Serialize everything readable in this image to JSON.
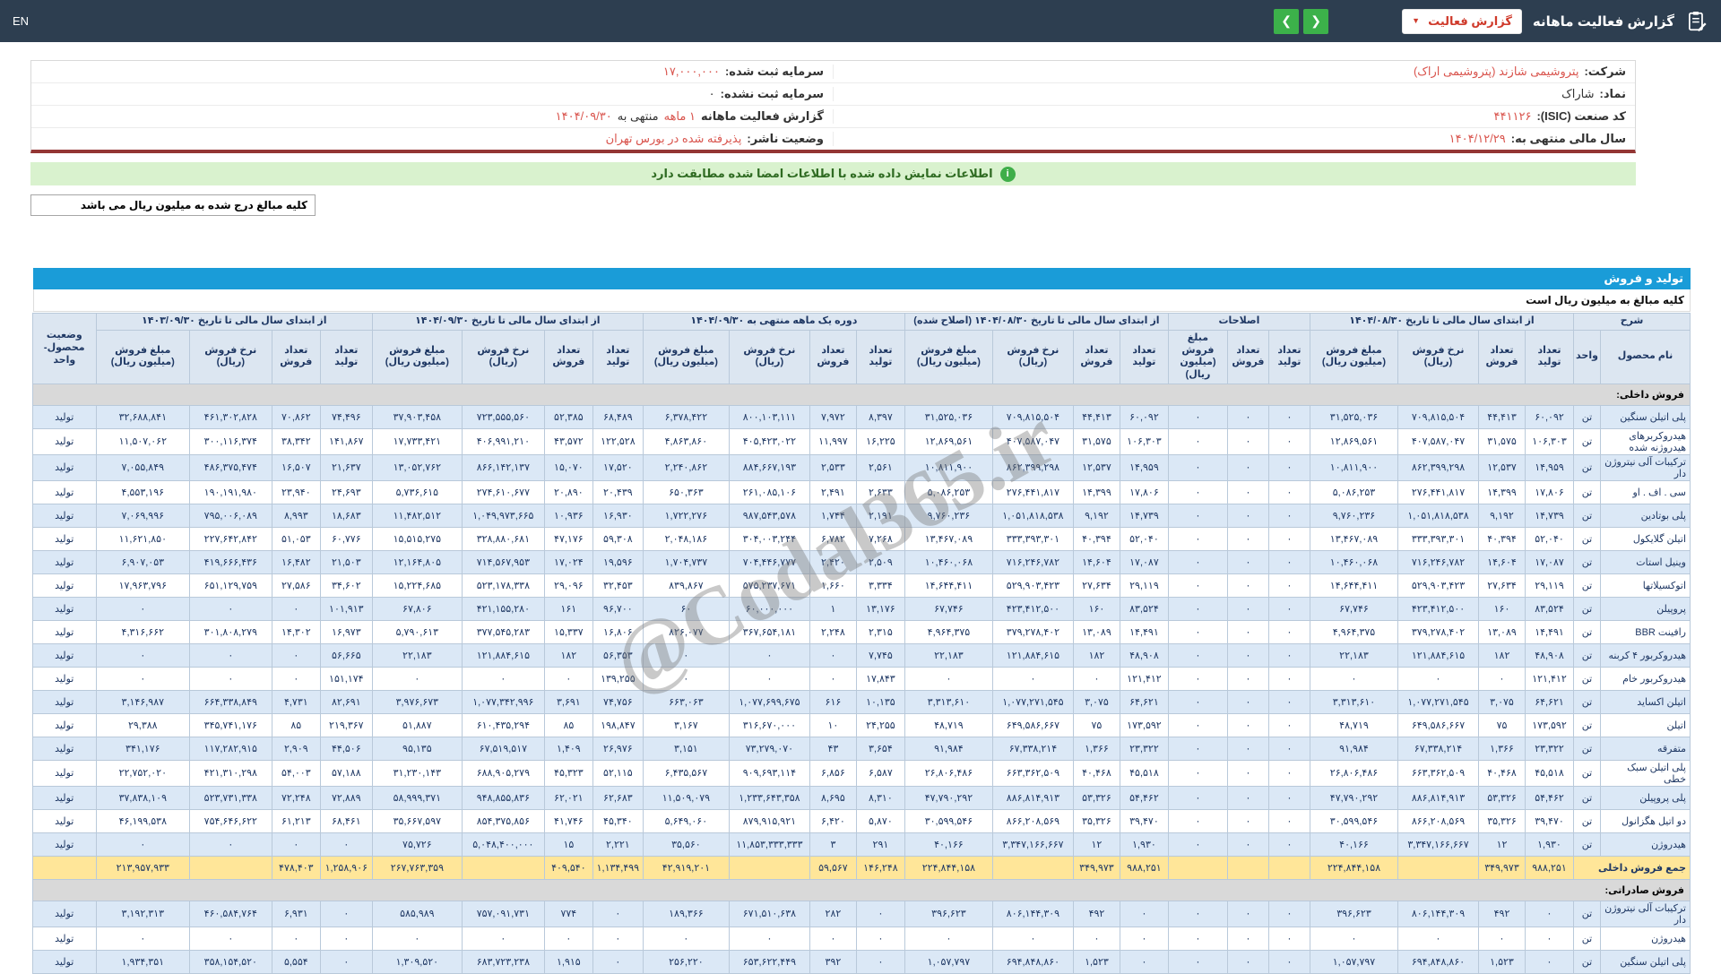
{
  "topbar": {
    "en": "EN",
    "title": "گزارش فعالیت ماهانه",
    "select_label": "گزارش فعالیت",
    "prev_arrow": "❮",
    "next_arrow": "❯"
  },
  "colors": {
    "topbar_bg": "#2d3e50",
    "accent_blue": "#1a9cd8",
    "banner_green": "#d9f2ce",
    "highlight_red": "#d9544d",
    "total_yellow": "#ffe699",
    "nav_green": "#3cb14a"
  },
  "company_info": {
    "rows": [
      {
        "r_label": "شرکت:",
        "r_value": "پتروشیمی شازند (پتروشیمی اراک)",
        "l_label": "سرمایه ثبت شده:",
        "l_value": "۱۷,۰۰۰,۰۰۰"
      },
      {
        "r_label": "نماد:",
        "r_value": "شاراک",
        "l_label": "سرمایه ثبت نشده:",
        "l_value": "۰"
      },
      {
        "r_label": "کد صنعت (ISIC):",
        "r_value": "۴۴۱۱۲۶",
        "l_label": "گزارش فعالیت ماهانه",
        "l_hl1": "۱ ماهه",
        "l_mid": "منتهی به",
        "l_value": "۱۴۰۴/۰۹/۳۰"
      },
      {
        "r_label": "سال مالی منتهی به:",
        "r_value": "۱۴۰۴/۱۲/۲۹",
        "l_label": "وضعیت ناشر:",
        "l_value": "پذیرفته شده در بورس تهران"
      }
    ]
  },
  "banner": {
    "icon": "i",
    "text": "اطلاعات نمایش داده شده با اطلاعات امضا شده مطابقت دارد"
  },
  "note_box": "کلیه مبالغ درج شده به میلیون ریال می باشد",
  "section_bar": "تولید و فروش",
  "amounts_note": "کلیه مبالغ به میلیون ریال است",
  "watermark": "@Codal365.ir",
  "table": {
    "sharh": "شرح",
    "name_col": "نام محصول",
    "unit_col": "واحد",
    "status_col": "وضعیت محصول-واحد",
    "col_labels": {
      "prod": "تعداد تولید",
      "sold": "تعداد فروش",
      "rate": "نرخ فروش (ریال)",
      "amount": "مبلغ فروش (میلیون ریال)"
    },
    "groups": {
      "g1": "از ابتدای سال مالی تا تاریخ ۱۴۰۴/۰۸/۳۰",
      "g2": "اصلاحات",
      "g3": "از ابتدای سال مالی تا تاریخ ۱۴۰۴/۰۸/۳۰ (اصلاح شده)",
      "g4": "دوره یک ماهه منتهی به ۱۴۰۴/۰۹/۳۰",
      "g5": "از ابتدای سال مالی تا تاریخ ۱۴۰۴/۰۹/۳۰",
      "g6": "از ابتدای سال مالی تا تاریخ ۱۴۰۳/۰۹/۳۰"
    },
    "rows": [
      {
        "type": "section",
        "label": "فروش داخلی:"
      },
      {
        "type": "data",
        "name": "پلی اتیلن سنگین",
        "unit": "تن",
        "status": "تولید",
        "cells": [
          "۶۰,۰۹۲",
          "۴۴,۴۱۳",
          "۷۰۹,۸۱۵,۵۰۴",
          "۳۱,۵۲۵,۰۳۶",
          "۰",
          "۰",
          "۰",
          "۶۰,۰۹۲",
          "۴۴,۴۱۳",
          "۷۰۹,۸۱۵,۵۰۴",
          "۳۱,۵۲۵,۰۳۶",
          "۸,۳۹۷",
          "۷,۹۷۲",
          "۸۰۰,۱۰۳,۱۱۱",
          "۶,۳۷۸,۴۲۲",
          "۶۸,۴۸۹",
          "۵۲,۳۸۵",
          "۷۲۳,۵۵۵,۵۶۰",
          "۳۷,۹۰۳,۴۵۸",
          "۷۴,۴۹۶",
          "۷۰,۸۶۲",
          "۴۶۱,۳۰۲,۸۲۸",
          "۳۲,۶۸۸,۸۴۱"
        ]
      },
      {
        "type": "data",
        "name": "هیدروکربرهای هیدروژنه شده",
        "unit": "تن",
        "status": "تولید",
        "cells": [
          "۱۰۶,۳۰۳",
          "۳۱,۵۷۵",
          "۴۰۷,۵۸۷,۰۴۷",
          "۱۲,۸۶۹,۵۶۱",
          "۰",
          "۰",
          "۰",
          "۱۰۶,۳۰۳",
          "۳۱,۵۷۵",
          "۴۰۷,۵۸۷,۰۴۷",
          "۱۲,۸۶۹,۵۶۱",
          "۱۶,۲۲۵",
          "۱۱,۹۹۷",
          "۴۰۵,۴۲۳,۰۲۲",
          "۴,۸۶۳,۸۶۰",
          "۱۲۲,۵۲۸",
          "۴۳,۵۷۲",
          "۴۰۶,۹۹۱,۲۱۰",
          "۱۷,۷۳۳,۴۲۱",
          "۱۴۱,۸۶۷",
          "۳۸,۳۴۲",
          "۳۰۰,۱۱۶,۳۷۴",
          "۱۱,۵۰۷,۰۶۲"
        ]
      },
      {
        "type": "data",
        "name": "ترکیبات آلی نیتروژن دار",
        "unit": "تن",
        "status": "تولید",
        "cells": [
          "۱۴,۹۵۹",
          "۱۲,۵۳۷",
          "۸۶۲,۳۹۹,۲۹۸",
          "۱۰,۸۱۱,۹۰۰",
          "۰",
          "۰",
          "۰",
          "۱۴,۹۵۹",
          "۱۲,۵۳۷",
          "۸۶۲,۳۹۹,۲۹۸",
          "۱۰,۸۱۱,۹۰۰",
          "۲,۵۶۱",
          "۲,۵۳۳",
          "۸۸۴,۶۶۷,۱۹۳",
          "۲,۲۴۰,۸۶۲",
          "۱۷,۵۲۰",
          "۱۵,۰۷۰",
          "۸۶۶,۱۴۲,۱۳۷",
          "۱۳,۰۵۲,۷۶۲",
          "۲۱,۶۳۷",
          "۱۶,۵۰۷",
          "۴۸۶,۳۷۵,۴۷۴",
          "۷,۰۵۵,۸۴۹"
        ]
      },
      {
        "type": "data",
        "name": "سی . اف . او",
        "unit": "تن",
        "status": "تولید",
        "cells": [
          "۱۷,۸۰۶",
          "۱۴,۳۹۹",
          "۲۷۶,۴۴۱,۸۱۷",
          "۵,۰۸۶,۲۵۳",
          "۰",
          "۰",
          "۰",
          "۱۷,۸۰۶",
          "۱۴,۳۹۹",
          "۲۷۶,۴۴۱,۸۱۷",
          "۵,۰۸۶,۲۵۳",
          "۲,۶۳۳",
          "۲,۴۹۱",
          "۲۶۱,۰۸۵,۱۰۶",
          "۶۵۰,۳۶۳",
          "۲۰,۴۳۹",
          "۲۰,۸۹۰",
          "۲۷۴,۶۱۰,۶۷۷",
          "۵,۷۳۶,۶۱۵",
          "۲۴,۶۹۳",
          "۲۳,۹۴۰",
          "۱۹۰,۱۹۱,۹۸۰",
          "۴,۵۵۳,۱۹۶"
        ]
      },
      {
        "type": "data",
        "name": "پلی بوتادین",
        "unit": "تن",
        "status": "تولید",
        "cells": [
          "۱۴,۷۳۹",
          "۹,۱۹۲",
          "۱,۰۵۱,۸۱۸,۵۳۸",
          "۹,۷۶۰,۲۳۶",
          "۰",
          "۰",
          "۰",
          "۱۴,۷۳۹",
          "۹,۱۹۲",
          "۱,۰۵۱,۸۱۸,۵۳۸",
          "۹,۷۶۰,۲۳۶",
          "۲,۱۹۱",
          "۱,۷۴۴",
          "۹۸۷,۵۴۳,۵۷۸",
          "۱,۷۲۲,۲۷۶",
          "۱۶,۹۳۰",
          "۱۰,۹۳۶",
          "۱,۰۴۹,۹۷۳,۶۶۵",
          "۱۱,۴۸۲,۵۱۲",
          "۱۸,۶۸۳",
          "۸,۹۹۳",
          "۷۹۵,۰۰۶,۰۸۹",
          "۷,۰۶۹,۹۹۶"
        ]
      },
      {
        "type": "data",
        "name": "اتیلن گلایکول",
        "unit": "تن",
        "status": "تولید",
        "cells": [
          "۵۲,۰۴۰",
          "۴۰,۳۹۴",
          "۳۳۳,۳۹۳,۳۰۱",
          "۱۳,۴۶۷,۰۸۹",
          "۰",
          "۰",
          "۰",
          "۵۲,۰۴۰",
          "۴۰,۳۹۴",
          "۳۳۳,۳۹۳,۳۰۱",
          "۱۳,۴۶۷,۰۸۹",
          "۷,۲۶۸",
          "۶,۷۸۲",
          "۳۰۴,۰۰۳,۲۴۴",
          "۲,۰۴۸,۱۸۶",
          "۵۹,۳۰۸",
          "۴۷,۱۷۶",
          "۳۲۸,۸۸۰,۶۸۱",
          "۱۵,۵۱۵,۲۷۵",
          "۶۰,۷۷۶",
          "۵۱,۰۵۳",
          "۲۲۷,۶۴۲,۸۴۲",
          "۱۱,۶۲۱,۸۵۰"
        ]
      },
      {
        "type": "data",
        "name": "وینیل استات",
        "unit": "تن",
        "status": "تولید",
        "cells": [
          "۱۷,۰۸۷",
          "۱۴,۶۰۴",
          "۷۱۶,۲۴۶,۷۸۲",
          "۱۰,۴۶۰,۰۶۸",
          "۰",
          "۰",
          "۰",
          "۱۷,۰۸۷",
          "۱۴,۶۰۴",
          "۷۱۶,۲۴۶,۷۸۲",
          "۱۰,۴۶۰,۰۶۸",
          "۲,۵۰۹",
          "۲,۴۲۰",
          "۷۰۴,۴۴۶,۷۷۷",
          "۱,۷۰۴,۷۳۷",
          "۱۹,۵۹۶",
          "۱۷,۰۲۴",
          "۷۱۴,۵۶۷,۹۵۳",
          "۱۲,۱۶۴,۸۰۵",
          "۲۱,۵۰۳",
          "۱۶,۴۸۲",
          "۴۱۹,۶۶۶,۴۳۶",
          "۶,۹۰۷,۰۵۳"
        ]
      },
      {
        "type": "data",
        "name": "اتوکسیلاتها",
        "unit": "تن",
        "status": "تولید",
        "cells": [
          "۲۹,۱۱۹",
          "۲۷,۶۳۴",
          "۵۲۹,۹۰۳,۴۲۳",
          "۱۴,۶۴۴,۴۱۱",
          "۰",
          "۰",
          "۰",
          "۲۹,۱۱۹",
          "۲۷,۶۳۴",
          "۵۲۹,۹۰۳,۴۲۳",
          "۱۴,۶۴۴,۴۱۱",
          "۳,۳۳۴",
          "۱,۶۶۰",
          "۵۷۵,۲۳۷,۶۷۱",
          "۸۳۹,۸۶۷",
          "۳۲,۴۵۳",
          "۲۹,۰۹۶",
          "۵۲۳,۱۷۸,۳۳۸",
          "۱۵,۲۲۴,۶۸۵",
          "۳۴,۶۰۲",
          "۲۷,۵۸۶",
          "۶۵۱,۱۲۹,۷۵۹",
          "۱۷,۹۶۳,۷۹۶"
        ]
      },
      {
        "type": "data",
        "name": "پروپیلن",
        "unit": "تن",
        "status": "تولید",
        "cells": [
          "۸۳,۵۲۴",
          "۱۶۰",
          "۴۲۳,۴۱۲,۵۰۰",
          "۶۷,۷۴۶",
          "۰",
          "۰",
          "۰",
          "۸۳,۵۲۴",
          "۱۶۰",
          "۴۲۳,۴۱۲,۵۰۰",
          "۶۷,۷۴۶",
          "۱۳,۱۷۶",
          "۱",
          "۶۰,۰۰۰,۰۰۰",
          "۶۰",
          "۹۶,۷۰۰",
          "۱۶۱",
          "۴۲۱,۱۵۵,۲۸۰",
          "۶۷,۸۰۶",
          "۱۰۱,۹۱۳",
          "۰",
          "۰",
          "۰"
        ]
      },
      {
        "type": "data",
        "name": "رافینت BBR",
        "unit": "تن",
        "status": "تولید",
        "cells": [
          "۱۴,۴۹۱",
          "۱۳,۰۸۹",
          "۳۷۹,۲۷۸,۴۰۲",
          "۴,۹۶۴,۳۷۵",
          "۰",
          "۰",
          "۰",
          "۱۴,۴۹۱",
          "۱۳,۰۸۹",
          "۳۷۹,۲۷۸,۴۰۲",
          "۴,۹۶۴,۳۷۵",
          "۲,۳۱۵",
          "۲,۲۴۸",
          "۳۶۷,۶۵۴,۱۸۱",
          "۸۲۶,۰۷۷",
          "۱۶,۸۰۶",
          "۱۵,۳۳۷",
          "۳۷۷,۵۴۵,۲۸۳",
          "۵,۷۹۰,۶۱۳",
          "۱۶,۹۷۳",
          "۱۴,۳۰۲",
          "۳۰۱,۸۰۸,۲۷۹",
          "۴,۳۱۶,۶۶۲"
        ]
      },
      {
        "type": "data",
        "name": "هیدروکربور ۴ کربنه",
        "unit": "تن",
        "status": "تولید",
        "cells": [
          "۴۸,۹۰۸",
          "۱۸۲",
          "۱۲۱,۸۸۴,۶۱۵",
          "۲۲,۱۸۳",
          "۰",
          "۰",
          "۰",
          "۴۸,۹۰۸",
          "۱۸۲",
          "۱۲۱,۸۸۴,۶۱۵",
          "۲۲,۱۸۳",
          "۷,۷۴۵",
          "۰",
          "۰",
          "۰",
          "۵۶,۳۵۳",
          "۱۸۲",
          "۱۲۱,۸۸۴,۶۱۵",
          "۲۲,۱۸۳",
          "۵۶,۶۶۵",
          "۰",
          "۰",
          "۰"
        ]
      },
      {
        "type": "data",
        "name": "هیدروکربور خام",
        "unit": "تن",
        "status": "تولید",
        "cells": [
          "۱۲۱,۴۱۲",
          "۰",
          "۰",
          "۰",
          "۰",
          "۰",
          "۰",
          "۱۲۱,۴۱۲",
          "۰",
          "۰",
          "۰",
          "۱۷,۸۴۳",
          "۰",
          "۰",
          "۰",
          "۱۳۹,۲۵۵",
          "۰",
          "۰",
          "۰",
          "۱۵۱,۱۷۴",
          "۰",
          "۰",
          "۰"
        ]
      },
      {
        "type": "data",
        "name": "اتیلن اکساید",
        "unit": "تن",
        "status": "تولید",
        "cells": [
          "۶۴,۶۲۱",
          "۳,۰۷۵",
          "۱,۰۷۷,۲۷۱,۵۴۵",
          "۳,۳۱۳,۶۱۰",
          "۰",
          "۰",
          "۰",
          "۶۴,۶۲۱",
          "۳,۰۷۵",
          "۱,۰۷۷,۲۷۱,۵۴۵",
          "۳,۳۱۳,۶۱۰",
          "۱۰,۱۳۵",
          "۶۱۶",
          "۱,۰۷۷,۶۹۹,۶۷۵",
          "۶۶۳,۰۶۳",
          "۷۴,۷۵۶",
          "۳,۶۹۱",
          "۱,۰۷۷,۳۴۲,۹۹۶",
          "۳,۹۷۶,۶۷۳",
          "۸۲,۶۹۱",
          "۴,۷۳۱",
          "۶۶۴,۳۳۸,۸۴۹",
          "۳,۱۴۶,۹۸۷"
        ]
      },
      {
        "type": "data",
        "name": "اتیلن",
        "unit": "تن",
        "status": "تولید",
        "cells": [
          "۱۷۳,۵۹۲",
          "۷۵",
          "۶۴۹,۵۸۶,۶۶۷",
          "۴۸,۷۱۹",
          "۰",
          "۰",
          "۰",
          "۱۷۳,۵۹۲",
          "۷۵",
          "۶۴۹,۵۸۶,۶۶۷",
          "۴۸,۷۱۹",
          "۲۴,۲۵۵",
          "۱۰",
          "۳۱۶,۶۷۰,۰۰۰",
          "۳,۱۶۷",
          "۱۹۸,۸۴۷",
          "۸۵",
          "۶۱۰,۴۳۵,۲۹۴",
          "۵۱,۸۸۷",
          "۲۱۹,۳۶۷",
          "۸۵",
          "۳۴۵,۷۴۱,۱۷۶",
          "۲۹,۳۸۸"
        ]
      },
      {
        "type": "data",
        "name": "متفرقه",
        "unit": "تن",
        "status": "تولید",
        "cells": [
          "۲۳,۳۲۲",
          "۱,۳۶۶",
          "۶۷,۳۳۸,۲۱۴",
          "۹۱,۹۸۴",
          "۰",
          "۰",
          "۰",
          "۲۳,۳۲۲",
          "۱,۳۶۶",
          "۶۷,۳۳۸,۲۱۴",
          "۹۱,۹۸۴",
          "۳,۶۵۴",
          "۴۳",
          "۷۳,۲۷۹,۰۷۰",
          "۳,۱۵۱",
          "۲۶,۹۷۶",
          "۱,۴۰۹",
          "۶۷,۵۱۹,۵۱۷",
          "۹۵,۱۳۵",
          "۴۴,۵۰۶",
          "۲,۹۰۹",
          "۱۱۷,۲۸۲,۹۱۵",
          "۳۴۱,۱۷۶"
        ]
      },
      {
        "type": "data",
        "name": "پلی اتیلن سبک خطی",
        "unit": "تن",
        "status": "تولید",
        "cells": [
          "۴۵,۵۱۸",
          "۴۰,۴۶۸",
          "۶۶۳,۳۶۲,۵۰۹",
          "۲۶,۸۰۶,۴۸۶",
          "۰",
          "۰",
          "۰",
          "۴۵,۵۱۸",
          "۴۰,۴۶۸",
          "۶۶۳,۳۶۲,۵۰۹",
          "۲۶,۸۰۶,۴۸۶",
          "۶,۵۸۷",
          "۶,۸۵۶",
          "۹۰۹,۶۹۳,۱۱۴",
          "۶,۴۳۵,۵۶۷",
          "۵۲,۱۱۵",
          "۴۵,۳۲۳",
          "۶۸۸,۹۰۵,۲۷۹",
          "۳۱,۲۳۰,۱۴۳",
          "۵۷,۱۸۸",
          "۵۴,۰۰۳",
          "۴۲۱,۳۱۰,۲۹۸",
          "۲۲,۷۵۲,۰۲۰"
        ]
      },
      {
        "type": "data",
        "name": "پلی پروپیلن",
        "unit": "تن",
        "status": "تولید",
        "cells": [
          "۵۴,۴۶۲",
          "۵۳,۳۲۶",
          "۸۸۶,۸۱۴,۹۱۳",
          "۴۷,۷۹۰,۲۹۲",
          "۰",
          "۰",
          "۰",
          "۵۴,۴۶۲",
          "۵۳,۳۲۶",
          "۸۸۶,۸۱۴,۹۱۳",
          "۴۷,۷۹۰,۲۹۲",
          "۸,۳۱۰",
          "۸,۶۹۵",
          "۱,۲۳۳,۶۴۳,۳۵۸",
          "۱۱,۵۰۹,۰۷۹",
          "۶۲,۶۸۳",
          "۶۲,۰۲۱",
          "۹۴۸,۸۵۵,۸۳۶",
          "۵۸,۹۹۹,۳۷۱",
          "۷۲,۸۸۹",
          "۷۲,۲۴۸",
          "۵۲۳,۷۳۱,۳۳۸",
          "۳۷,۸۳۸,۱۰۹"
        ]
      },
      {
        "type": "data",
        "name": "دو اتیل هگزانول",
        "unit": "تن",
        "status": "تولید",
        "cells": [
          "۳۹,۴۷۰",
          "۳۵,۳۲۶",
          "۸۶۶,۲۰۸,۵۶۹",
          "۳۰,۵۹۹,۵۴۶",
          "۰",
          "۰",
          "۰",
          "۳۹,۴۷۰",
          "۳۵,۳۲۶",
          "۸۶۶,۲۰۸,۵۶۹",
          "۳۰,۵۹۹,۵۴۶",
          "۵,۸۷۰",
          "۶,۴۲۰",
          "۸۷۹,۹۱۵,۹۲۱",
          "۵,۶۴۹,۰۶۰",
          "۴۵,۳۴۰",
          "۴۱,۷۴۶",
          "۸۵۴,۳۷۵,۸۵۶",
          "۳۵,۶۶۷,۵۹۷",
          "۶۸,۴۶۱",
          "۶۱,۲۱۳",
          "۷۵۴,۶۴۶,۶۲۲",
          "۴۶,۱۹۹,۵۳۸"
        ]
      },
      {
        "type": "data",
        "name": "هیدروژن",
        "unit": "تن",
        "status": "تولید",
        "cells": [
          "۱,۹۳۰",
          "۱۲",
          "۳,۳۴۷,۱۶۶,۶۶۷",
          "۴۰,۱۶۶",
          "۰",
          "۰",
          "۰",
          "۱,۹۳۰",
          "۱۲",
          "۳,۳۴۷,۱۶۶,۶۶۷",
          "۴۰,۱۶۶",
          "۲۹۱",
          "۳",
          "۱۱,۸۵۳,۳۳۳,۳۳۳",
          "۳۵,۵۶۰",
          "۲,۲۲۱",
          "۱۵",
          "۵,۰۴۸,۴۰۰,۰۰۰",
          "۷۵,۷۲۶",
          "۰",
          "۰",
          "۰",
          "۰"
        ]
      },
      {
        "type": "total",
        "label": "جمع فروش داخلی",
        "cells": [
          "۹۸۸,۲۵۱",
          "۳۴۹,۹۷۳",
          "",
          "۲۲۴,۸۴۴,۱۵۸",
          "",
          "",
          "",
          "۹۸۸,۲۵۱",
          "۳۴۹,۹۷۳",
          "",
          "۲۲۴,۸۴۴,۱۵۸",
          "۱۴۶,۲۴۸",
          "۵۹,۵۶۷",
          "",
          "۴۲,۹۱۹,۲۰۱",
          "۱,۱۳۴,۴۹۹",
          "۴۰۹,۵۴۰",
          "",
          "۲۶۷,۷۶۳,۳۵۹",
          "۱,۲۵۸,۹۰۶",
          "۴۷۸,۴۰۳",
          "",
          "۲۱۳,۹۵۷,۹۳۳"
        ]
      },
      {
        "type": "section",
        "label": "فروش صادراتی:"
      },
      {
        "type": "data",
        "name": "ترکیبات آلی نیتروژن دار",
        "unit": "تن",
        "status": "تولید",
        "cells": [
          "۰",
          "۴۹۲",
          "۸۰۶,۱۴۴,۳۰۹",
          "۳۹۶,۶۲۳",
          "۰",
          "۰",
          "۰",
          "۰",
          "۴۹۲",
          "۸۰۶,۱۴۴,۳۰۹",
          "۳۹۶,۶۲۳",
          "۰",
          "۲۸۲",
          "۶۷۱,۵۱۰,۶۳۸",
          "۱۸۹,۳۶۶",
          "۰",
          "۷۷۴",
          "۷۵۷,۰۹۱,۷۳۱",
          "۵۸۵,۹۸۹",
          "۰",
          "۶,۹۳۱",
          "۴۶۰,۵۸۴,۷۶۴",
          "۳,۱۹۲,۳۱۳"
        ]
      },
      {
        "type": "data",
        "name": "هیدروژن",
        "unit": "تن",
        "status": "تولید",
        "cells": [
          "۰",
          "۰",
          "۰",
          "۰",
          "۰",
          "۰",
          "۰",
          "۰",
          "۰",
          "۰",
          "۰",
          "۰",
          "۰",
          "۰",
          "۰",
          "۰",
          "۰",
          "۰",
          "۰",
          "۰",
          "۰",
          "۰",
          "۰"
        ]
      },
      {
        "type": "data",
        "name": "پلی اتیلن سنگین",
        "unit": "تن",
        "status": "تولید",
        "cells": [
          "۰",
          "۱,۵۲۳",
          "۶۹۴,۸۴۸,۸۶۰",
          "۱,۰۵۷,۷۹۷",
          "۰",
          "۰",
          "۰",
          "۰",
          "۱,۵۲۳",
          "۶۹۴,۸۴۸,۸۶۰",
          "۱,۰۵۷,۷۹۷",
          "۰",
          "۳۹۲",
          "۶۵۳,۶۲۲,۴۴۹",
          "۲۵۶,۲۲۰",
          "۰",
          "۱,۹۱۵",
          "۶۸۳,۷۲۳,۲۳۸",
          "۱,۳۰۹,۵۲۰",
          "۰",
          "۵,۵۵۴",
          "۳۵۸,۱۵۴,۵۲۰",
          "۱,۹۳۴,۳۵۱"
        ]
      }
    ]
  }
}
